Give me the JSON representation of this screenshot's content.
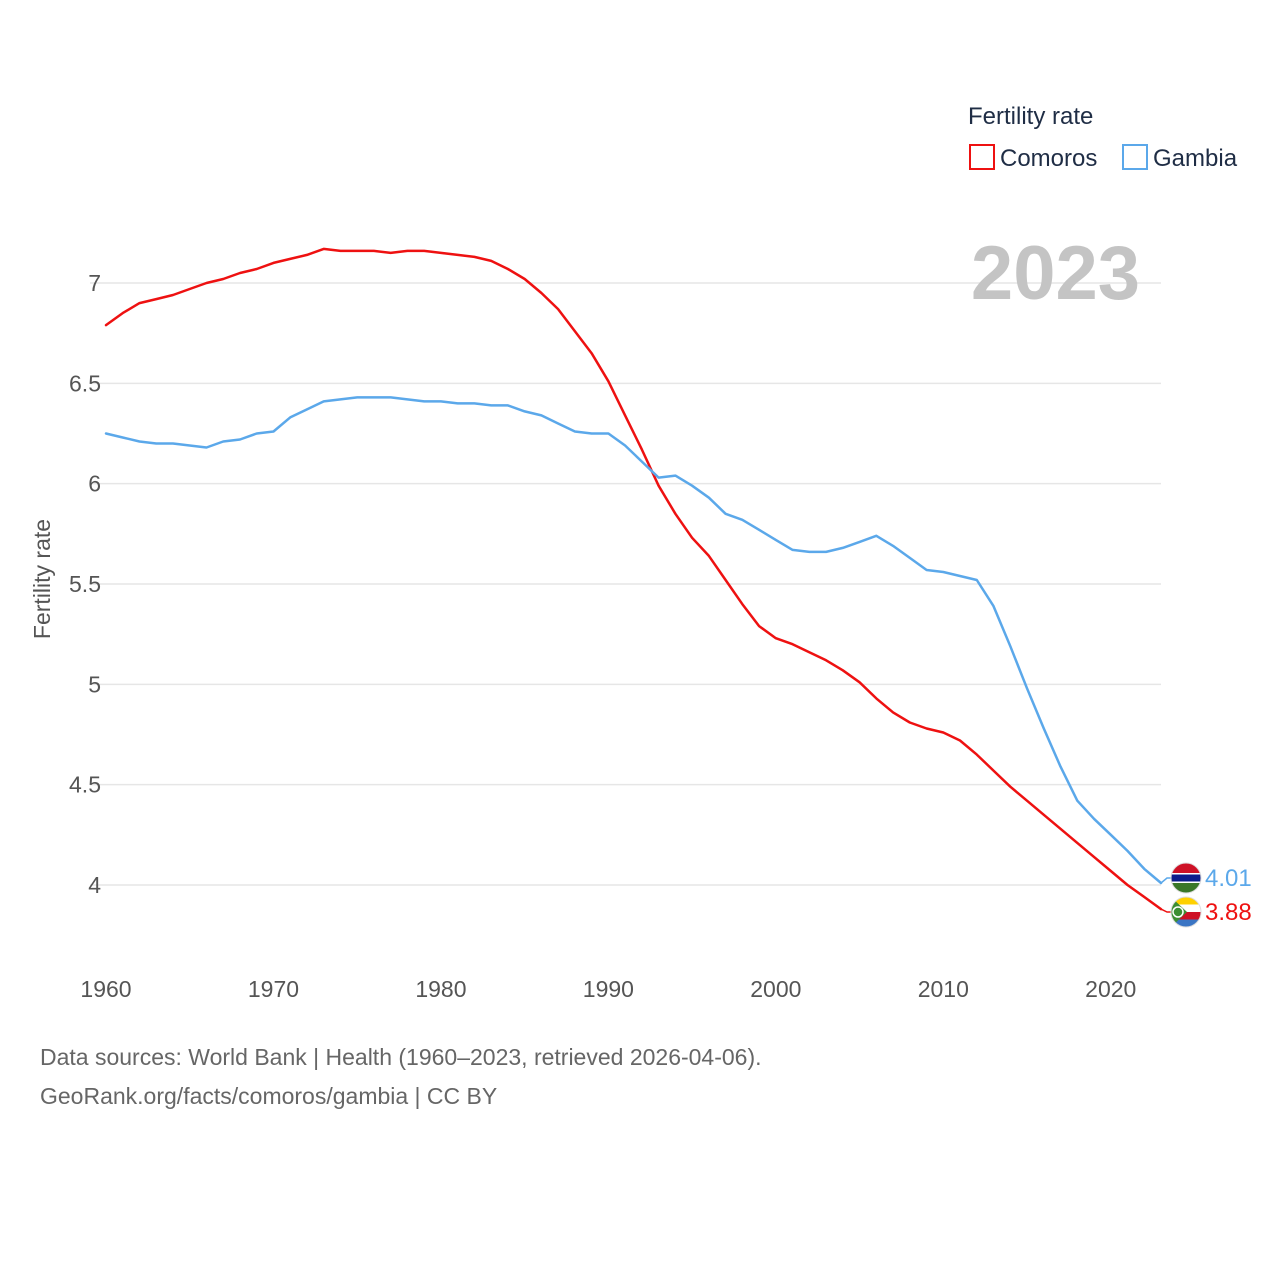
{
  "chart_data": {
    "type": "line",
    "title": "Fertility rate",
    "current_year": "2023",
    "ylabel": "Fertility rate",
    "xlabel": "",
    "xlim": [
      1960,
      2023
    ],
    "ylim": [
      3.7,
      7.3
    ],
    "x_ticks": [
      1960,
      1970,
      1980,
      1990,
      2000,
      2010,
      2020
    ],
    "y_ticks": [
      4,
      4.5,
      5,
      5.5,
      6,
      6.5,
      7
    ],
    "y_tick_labels": [
      "4",
      "4.5",
      "5",
      "5.5",
      "6",
      "6.5",
      "7"
    ],
    "x_tick_labels": [
      "1960",
      "1970",
      "1980",
      "1990",
      "2000",
      "2010",
      "2020"
    ],
    "grid": true,
    "legend": {
      "title": "Fertility rate",
      "position": "top-right"
    },
    "series": [
      {
        "name": "Comoros",
        "color": "#ee1111",
        "end_label": "3.88",
        "flag": "comoros-flag-icon",
        "x": [
          1960,
          1961,
          1962,
          1963,
          1964,
          1965,
          1966,
          1967,
          1968,
          1969,
          1970,
          1971,
          1972,
          1973,
          1974,
          1975,
          1976,
          1977,
          1978,
          1979,
          1980,
          1981,
          1982,
          1983,
          1984,
          1985,
          1986,
          1987,
          1988,
          1989,
          1990,
          1991,
          1992,
          1993,
          1994,
          1995,
          1996,
          1997,
          1998,
          1999,
          2000,
          2001,
          2002,
          2003,
          2004,
          2005,
          2006,
          2007,
          2008,
          2009,
          2010,
          2011,
          2012,
          2013,
          2014,
          2015,
          2016,
          2017,
          2018,
          2019,
          2020,
          2021,
          2022,
          2023
        ],
        "values": [
          6.79,
          6.85,
          6.9,
          6.92,
          6.94,
          6.97,
          7.0,
          7.02,
          7.05,
          7.07,
          7.1,
          7.12,
          7.14,
          7.17,
          7.16,
          7.16,
          7.16,
          7.15,
          7.16,
          7.16,
          7.15,
          7.14,
          7.13,
          7.11,
          7.07,
          7.02,
          6.95,
          6.87,
          6.76,
          6.65,
          6.51,
          6.34,
          6.17,
          5.99,
          5.85,
          5.73,
          5.64,
          5.52,
          5.4,
          5.29,
          5.23,
          5.2,
          5.16,
          5.12,
          5.07,
          5.01,
          4.93,
          4.86,
          4.81,
          4.78,
          4.76,
          4.72,
          4.65,
          4.57,
          4.49,
          4.42,
          4.35,
          4.28,
          4.21,
          4.14,
          4.07,
          4.0,
          3.94,
          3.88
        ]
      },
      {
        "name": "Gambia",
        "color": "#5ba8ea",
        "end_label": "4.01",
        "flag": "gambia-flag-icon",
        "x": [
          1960,
          1961,
          1962,
          1963,
          1964,
          1965,
          1966,
          1967,
          1968,
          1969,
          1970,
          1971,
          1972,
          1973,
          1974,
          1975,
          1976,
          1977,
          1978,
          1979,
          1980,
          1981,
          1982,
          1983,
          1984,
          1985,
          1986,
          1987,
          1988,
          1989,
          1990,
          1991,
          1992,
          1993,
          1994,
          1995,
          1996,
          1997,
          1998,
          1999,
          2000,
          2001,
          2002,
          2003,
          2004,
          2005,
          2006,
          2007,
          2008,
          2009,
          2010,
          2011,
          2012,
          2013,
          2014,
          2015,
          2016,
          2017,
          2018,
          2019,
          2020,
          2021,
          2022,
          2023
        ],
        "values": [
          6.25,
          6.23,
          6.21,
          6.2,
          6.2,
          6.19,
          6.18,
          6.21,
          6.22,
          6.25,
          6.26,
          6.33,
          6.37,
          6.41,
          6.42,
          6.43,
          6.43,
          6.43,
          6.42,
          6.41,
          6.41,
          6.4,
          6.4,
          6.39,
          6.39,
          6.36,
          6.34,
          6.3,
          6.26,
          6.25,
          6.25,
          6.19,
          6.11,
          6.03,
          6.04,
          5.99,
          5.93,
          5.85,
          5.82,
          5.77,
          5.72,
          5.67,
          5.66,
          5.66,
          5.68,
          5.71,
          5.74,
          5.69,
          5.63,
          5.57,
          5.56,
          5.54,
          5.52,
          5.39,
          5.19,
          4.98,
          4.78,
          4.59,
          4.42,
          4.33,
          4.25,
          4.17,
          4.08,
          4.01
        ]
      }
    ]
  },
  "footer": {
    "sources": "Data sources: World Bank | Health (1960–2023, retrieved 2026-04-06).",
    "link": "GeoRank.org/facts/comoros/gambia | CC BY"
  }
}
